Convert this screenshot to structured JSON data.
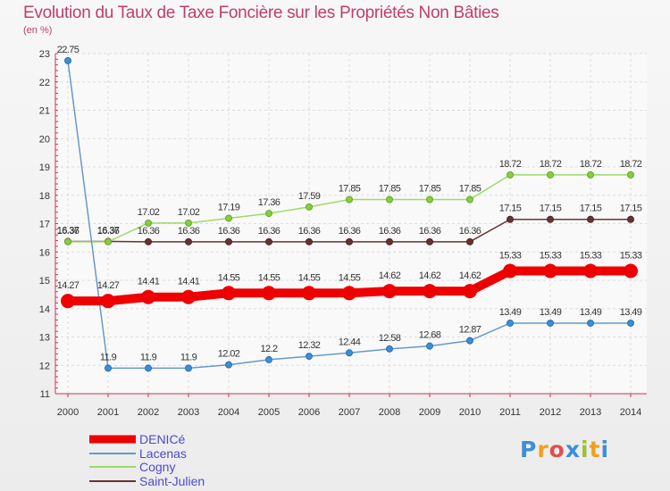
{
  "chart_data": {
    "type": "line",
    "title": "Evolution du Taux de Taxe Foncière sur les Propriétés Non Bâties",
    "unit_label": "(en %)",
    "xlabel": "",
    "ylabel": "",
    "x": [
      2000,
      2001,
      2002,
      2003,
      2004,
      2005,
      2006,
      2007,
      2008,
      2009,
      2010,
      2011,
      2012,
      2013,
      2014
    ],
    "ylim": [
      11,
      23
    ],
    "yticks": [
      11,
      12,
      13,
      14,
      15,
      16,
      17,
      18,
      19,
      20,
      21,
      22,
      23
    ],
    "series": [
      {
        "name": "DENICé",
        "color": "#ee0000",
        "values": [
          14.27,
          14.27,
          14.41,
          14.41,
          14.55,
          14.55,
          14.55,
          14.55,
          14.62,
          14.62,
          14.62,
          15.33,
          15.33,
          15.33,
          15.33
        ],
        "labels": [
          "14.27",
          "14.27",
          "14.41",
          "14.41",
          "14.55",
          "14.55",
          "14.55",
          "14.55",
          "14.62",
          "14.62",
          "14.62",
          "15.33",
          "15.33",
          "15.33",
          "15.33"
        ]
      },
      {
        "name": "Lacenas",
        "color": "#6699cc",
        "values": [
          22.75,
          11.9,
          11.9,
          11.9,
          12.02,
          12.2,
          12.32,
          12.44,
          12.58,
          12.68,
          12.87,
          13.49,
          13.49,
          13.49,
          13.49
        ],
        "labels": [
          "22.75",
          "11.9",
          "11.9",
          "11.9",
          "12.02",
          "12.2",
          "12.32",
          "12.44",
          "12.58",
          "12.68",
          "12.87",
          "13.49",
          "13.49",
          "13.49",
          "13.49"
        ]
      },
      {
        "name": "Cogny",
        "color": "#99dd66",
        "values": [
          16.36,
          16.36,
          17.02,
          17.02,
          17.19,
          17.36,
          17.59,
          17.85,
          17.85,
          17.85,
          17.85,
          18.72,
          18.72,
          18.72,
          18.72
        ],
        "labels": [
          "16.36",
          "16.36",
          "17.02",
          "17.02",
          "17.19",
          "17.36",
          "17.59",
          "17.85",
          "17.85",
          "17.85",
          "17.85",
          "18.72",
          "18.72",
          "18.72",
          "18.72"
        ]
      },
      {
        "name": "Saint-Julien",
        "color": "#663333",
        "values": [
          16.37,
          16.37,
          16.36,
          16.36,
          16.36,
          16.36,
          16.36,
          16.36,
          16.36,
          16.36,
          16.36,
          17.15,
          17.15,
          17.15,
          17.15
        ],
        "labels": [
          "16.37",
          "16.37",
          "16.36",
          "16.36",
          "16.36",
          "16.36",
          "16.36",
          "16.36",
          "16.36",
          "16.36",
          "16.36",
          "17.15",
          "17.15",
          "17.15",
          "17.15"
        ]
      }
    ]
  },
  "legend": {
    "items": [
      "DENICé",
      "Lacenas",
      "Cogny",
      "Saint-Julien"
    ]
  },
  "logo": {
    "letters": [
      "P",
      "r",
      "o",
      "x",
      "i",
      "t",
      "i"
    ],
    "colors": [
      "#3a8fd6",
      "#f0a020",
      "#e05050",
      "#3a8fd6",
      "#a0c030",
      "#f0a020",
      "#3a8fd6"
    ]
  }
}
